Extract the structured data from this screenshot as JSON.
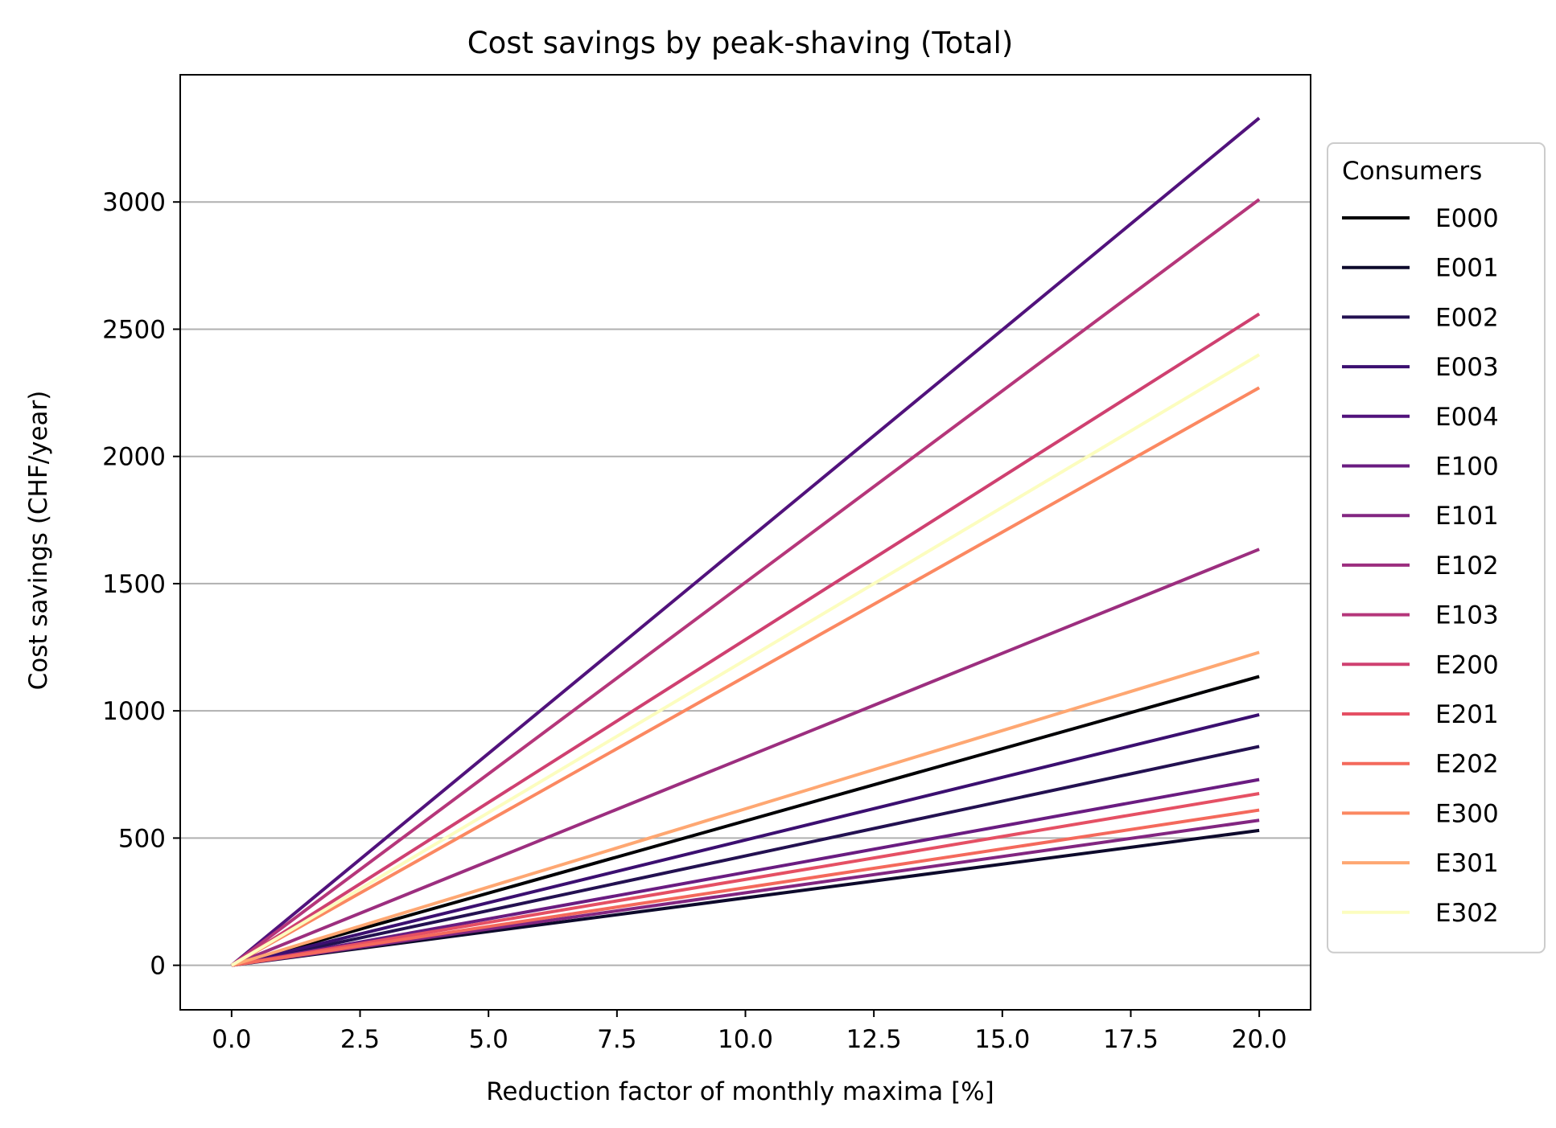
{
  "chart_data": {
    "type": "line",
    "title": "Cost savings by peak-shaving (Total)",
    "xlabel": "Reduction factor of monthly maxima [%]",
    "ylabel": "Cost savings (CHF/year)",
    "xlim": [
      -1,
      21
    ],
    "ylim": [
      -175,
      3500
    ],
    "xticks": [
      0.0,
      2.5,
      5.0,
      7.5,
      10.0,
      12.5,
      15.0,
      17.5,
      20.0
    ],
    "xtick_labels": [
      "0.0",
      "2.5",
      "5.0",
      "7.5",
      "10.0",
      "12.5",
      "15.0",
      "17.5",
      "20.0"
    ],
    "yticks": [
      0,
      500,
      1000,
      1500,
      2000,
      2500,
      3000
    ],
    "ytick_labels": [
      "0",
      "500",
      "1000",
      "1500",
      "2000",
      "2500",
      "3000"
    ],
    "grid": "horizontal",
    "legend": {
      "title": "Consumers",
      "placement": "right, outside plot"
    },
    "x": [
      0,
      20
    ],
    "series": [
      {
        "name": "E000",
        "color": "#000004",
        "values": [
          0,
          1135
        ]
      },
      {
        "name": "E001",
        "color": "#0d0a2c",
        "values": [
          0,
          530
        ]
      },
      {
        "name": "E002",
        "color": "#231151",
        "values": [
          0,
          860
        ]
      },
      {
        "name": "E003",
        "color": "#3b0f70",
        "values": [
          0,
          985
        ]
      },
      {
        "name": "E004",
        "color": "#51127c",
        "values": [
          0,
          3330
        ]
      },
      {
        "name": "E100",
        "color": "#6a1c81",
        "values": [
          0,
          730
        ]
      },
      {
        "name": "E101",
        "color": "#822681",
        "values": [
          0,
          570
        ]
      },
      {
        "name": "E102",
        "color": "#9c2e7f",
        "values": [
          0,
          1635
        ]
      },
      {
        "name": "E103",
        "color": "#b5367a",
        "values": [
          0,
          3010
        ]
      },
      {
        "name": "E200",
        "color": "#cf4070",
        "values": [
          0,
          2560
        ]
      },
      {
        "name": "E201",
        "color": "#e55064",
        "values": [
          0,
          675
        ]
      },
      {
        "name": "E202",
        "color": "#f4695c",
        "values": [
          0,
          610
        ]
      },
      {
        "name": "E300",
        "color": "#fb8861",
        "values": [
          0,
          2270
        ]
      },
      {
        "name": "E301",
        "color": "#fea772",
        "values": [
          0,
          1230
        ]
      },
      {
        "name": "E302",
        "color": "#fcfdbf",
        "values": [
          0,
          2400
        ]
      }
    ]
  }
}
